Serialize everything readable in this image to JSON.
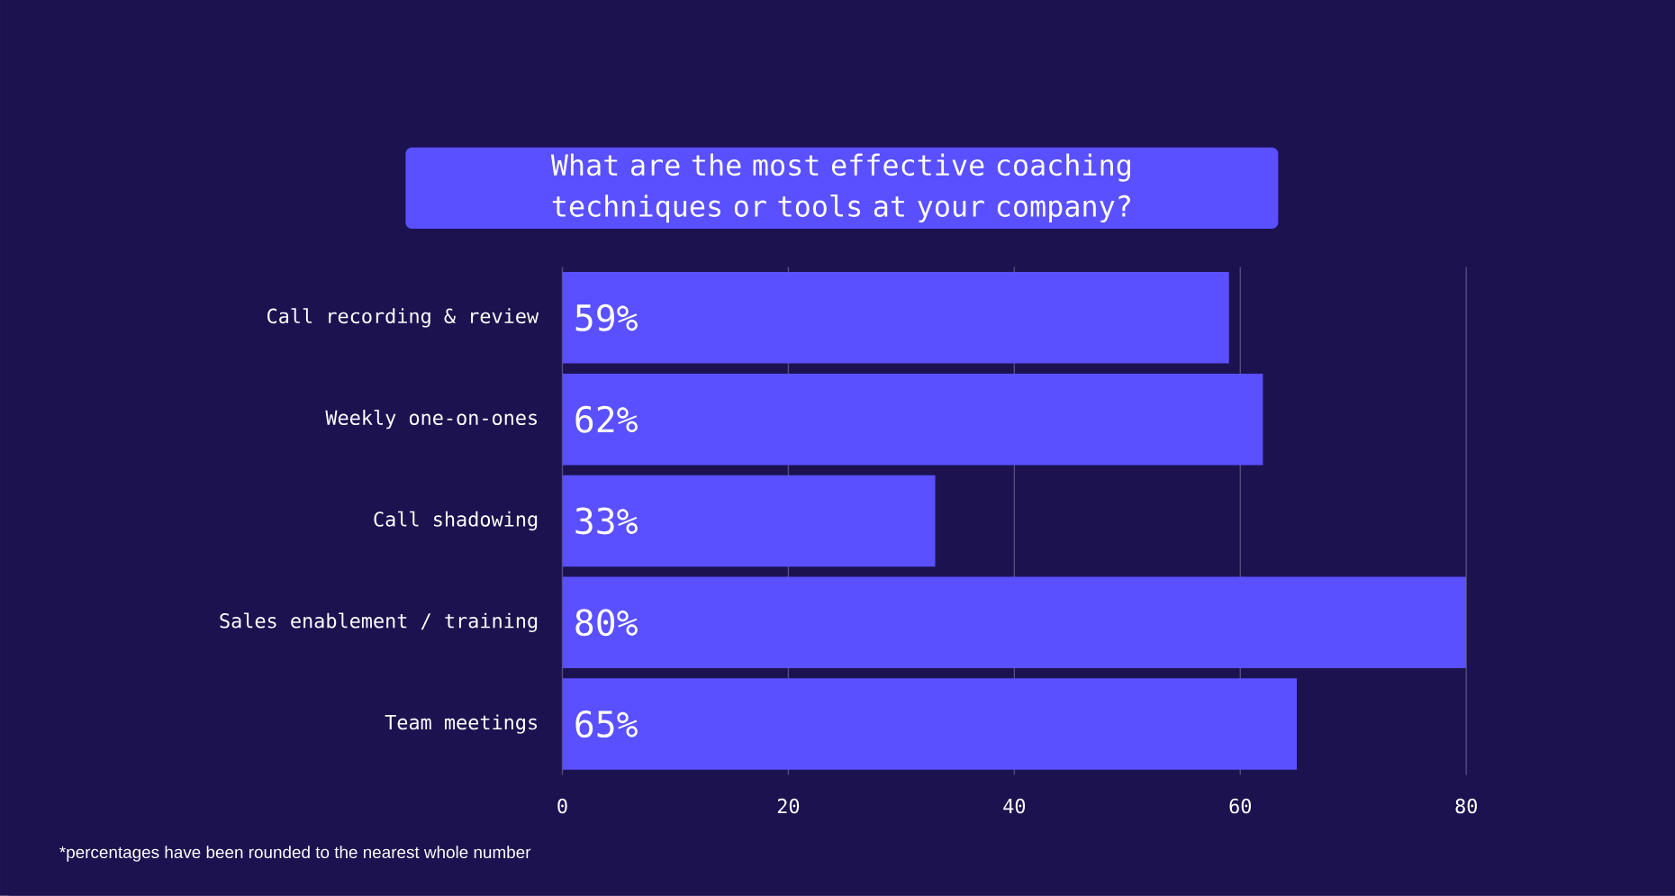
{
  "chart_data": {
    "type": "bar",
    "orientation": "horizontal",
    "title": "What are the most effective coaching techniques or tools at your company?",
    "categories": [
      "Call recording & review",
      "Weekly one-on-ones",
      "Call shadowing",
      "Sales enablement / training",
      "Team meetings"
    ],
    "values": [
      59,
      62,
      33,
      80,
      65
    ],
    "value_labels": [
      "59%",
      "62%",
      "33%",
      "80%",
      "65%"
    ],
    "color": "#5a50ff",
    "xlim": [
      0,
      80
    ],
    "xticks": [
      0,
      20,
      40,
      60,
      80
    ],
    "grid": "x",
    "annotations": [
      "*percentages have been rounded to the nearest whole number"
    ]
  }
}
